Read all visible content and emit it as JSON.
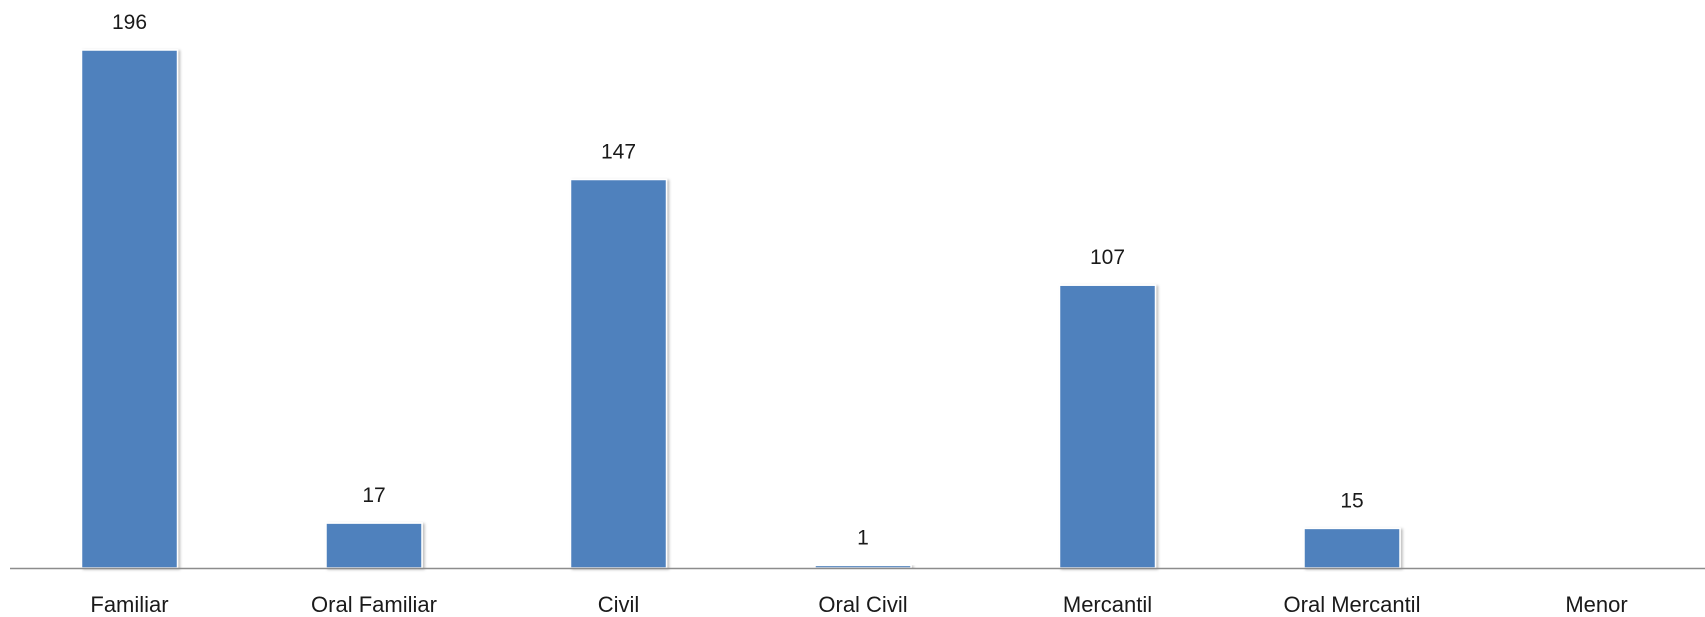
{
  "chart_data": {
    "type": "bar",
    "categories": [
      "Familiar",
      "Oral Familiar",
      "Civil",
      "Oral Civil",
      "Mercantil",
      "Oral Mercantil",
      "Menor"
    ],
    "values": [
      196,
      17,
      147,
      1,
      107,
      15,
      0
    ],
    "data_labels": [
      "196",
      "17",
      "147",
      "1",
      "107",
      "15",
      ""
    ],
    "ylim": [
      0,
      196
    ],
    "grid": false,
    "legend": "none",
    "bar_color": "#4F81BD",
    "axis_color": "#8C8C8C"
  }
}
